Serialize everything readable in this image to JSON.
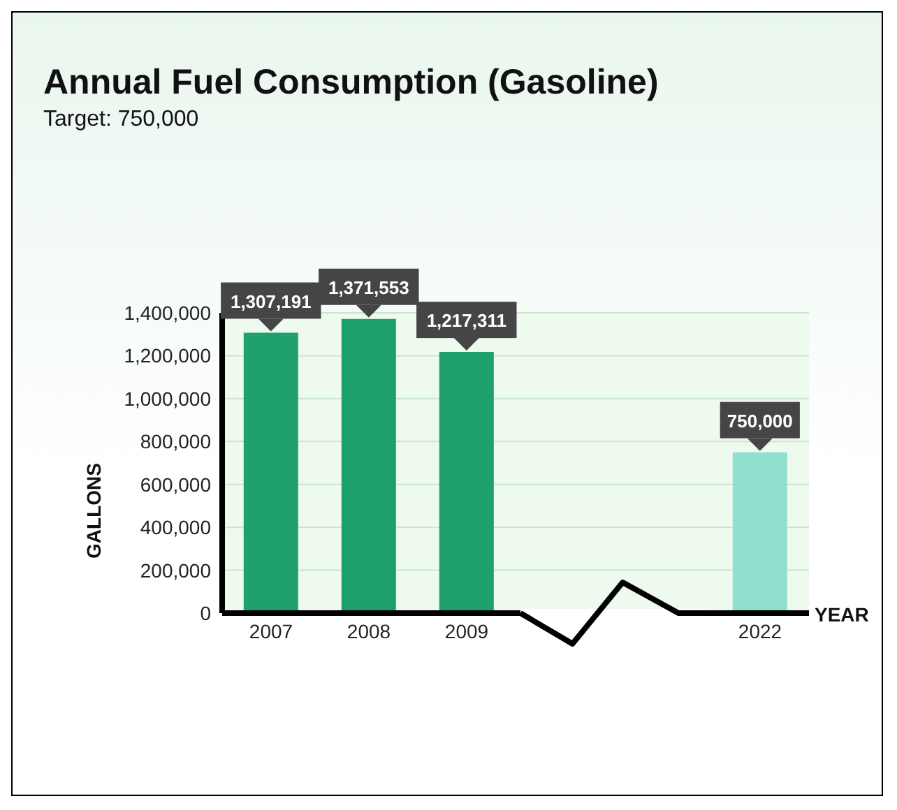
{
  "chart_data": {
    "type": "bar",
    "title": "Annual Fuel Consumption (Gasoline)",
    "subtitle": "Target: 750,000",
    "xlabel": "YEAR",
    "ylabel": "GALLONS",
    "categories": [
      "2007",
      "2008",
      "2009",
      null,
      null,
      "2022"
    ],
    "values": [
      1307191,
      1371553,
      1217311,
      null,
      null,
      750000
    ],
    "colors": [
      "#1fa06a",
      "#1fa06a",
      "#1fa06a",
      "#1fa06a",
      "#1fa06a",
      "#8fe0cf"
    ],
    "value_labels": [
      "1,307,191",
      "1,371,553",
      "1,217,311",
      null,
      null,
      "750,000"
    ],
    "ylim": [
      0,
      1400000
    ],
    "yticks": [
      0,
      {
        "value": 200000,
        "label": "200,000"
      },
      {
        "value": 400000,
        "label": "400,000"
      },
      {
        "value": 600000,
        "label": "600,000"
      },
      {
        "value": 800000,
        "label": "800,000"
      },
      {
        "value": 1000000,
        "label": "1,000,000"
      },
      {
        "value": 1200000,
        "label": "1,200,000"
      },
      {
        "value": 1400000,
        "label": "1,400,000"
      }
    ],
    "grid": "y"
  }
}
